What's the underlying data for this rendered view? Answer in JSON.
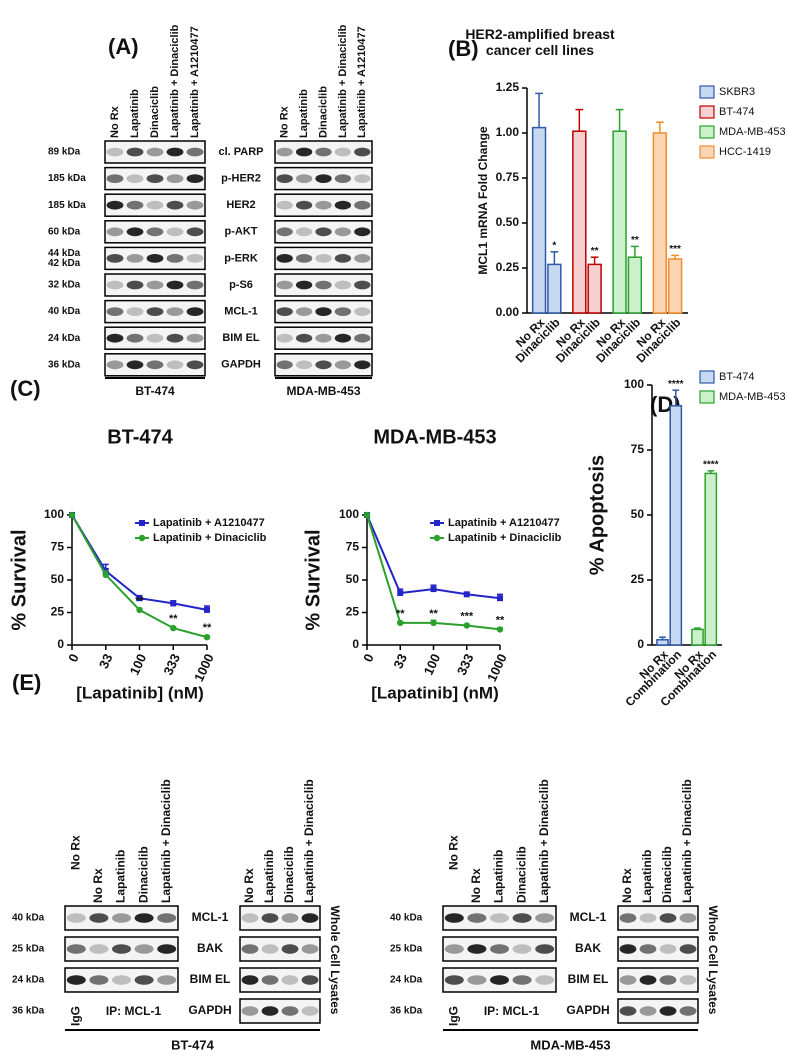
{
  "panel_labels": [
    "(A)",
    "(B)",
    "(C)",
    "(D)",
    "(E)"
  ],
  "blot_a": {
    "lanes": [
      "No Rx",
      "Lapatinib",
      "Dinaciclib",
      "Lapatinib + Dinaciclib",
      "Lapatinib + A1210477"
    ],
    "rows": [
      {
        "markers": [
          "89 kDa"
        ],
        "protein": "cl. PARP"
      },
      {
        "markers": [
          "185 kDa"
        ],
        "protein": "p-HER2"
      },
      {
        "markers": [
          "185 kDa"
        ],
        "protein": "HER2"
      },
      {
        "markers": [
          "60 kDa"
        ],
        "protein": "p-AKT"
      },
      {
        "markers": [
          "44 kDa",
          "42 kDa"
        ],
        "protein": "p-ERK"
      },
      {
        "markers": [
          "32 kDa"
        ],
        "protein": "p-S6"
      },
      {
        "markers": [
          "40 kDa"
        ],
        "protein": "MCL-1"
      },
      {
        "markers": [
          "24 kDa"
        ],
        "protein": "BIM EL"
      },
      {
        "markers": [
          "36 kDa"
        ],
        "protein": "GAPDH"
      }
    ],
    "cell_lines": [
      "BT-474",
      "MDA-MB-453"
    ]
  },
  "blot_e": {
    "ip_lanes": [
      "No Rx",
      "No Rx",
      "Lapatinib",
      "Dinaciclib",
      "Lapatinib + Dinaciclib"
    ],
    "wcl_lanes": [
      "No Rx",
      "Lapatinib",
      "Dinaciclib",
      "Lapatinib + Dinaciclib"
    ],
    "rows": [
      {
        "marker": "40 kDa",
        "protein": "MCL-1"
      },
      {
        "marker": "25 kDa",
        "protein": "BAK"
      },
      {
        "marker": "24 kDa",
        "protein": "BIM EL"
      },
      {
        "marker": "36 kDa",
        "protein": "GAPDH"
      }
    ],
    "igg": "IgG",
    "ip_label": "IP: MCL-1",
    "wcl_label": "Whole Cell Lysates",
    "cell_lines": [
      "BT-474",
      "MDA-MB-453"
    ]
  },
  "chart_data": [
    {
      "type": "bar",
      "title": "HER2-amplified breast cancer cell lines",
      "ylabel": "MCL1 mRNA Fold Change",
      "categories": [
        "No Rx",
        "Dinaciclib"
      ],
      "series": [
        {
          "name": "SKBR3",
          "color": "#c6d9f1",
          "edge_color": "#2e59a8",
          "values": [
            1.03,
            0.27
          ],
          "errors": [
            0.19,
            0.07
          ],
          "annotations": [
            null,
            "*"
          ]
        },
        {
          "name": "BT-474",
          "color": "#f6d0d0",
          "edge_color": "#c00000",
          "values": [
            1.01,
            0.27
          ],
          "errors": [
            0.12,
            0.04
          ],
          "annotations": [
            null,
            "**"
          ]
        },
        {
          "name": "MDA-MB-453",
          "color": "#ccf0cc",
          "edge_color": "#2ca02c",
          "values": [
            1.01,
            0.31
          ],
          "errors": [
            0.12,
            0.06
          ],
          "annotations": [
            null,
            "**"
          ]
        },
        {
          "name": "HCC-1419",
          "color": "#fcd5b4",
          "edge_color": "#f28c28",
          "values": [
            1.0,
            0.3
          ],
          "errors": [
            0.06,
            0.02
          ],
          "annotations": [
            null,
            "***"
          ]
        }
      ],
      "ylim": [
        0,
        1.25
      ],
      "yticks": [
        {
          "value": 0,
          "label": "0.00"
        },
        {
          "value": 0.25,
          "label": "0.25"
        },
        {
          "value": 0.5,
          "label": "0.50"
        },
        {
          "value": 0.75,
          "label": "0.75"
        },
        {
          "value": 1,
          "label": "1.00"
        },
        {
          "value": 1.25,
          "label": "1.25"
        }
      ],
      "legend": "upper right"
    },
    {
      "type": "line",
      "title": "BT-474",
      "xlabel": "[Lapatinib] (nM)",
      "ylabel": "% Survival",
      "categories": [
        "0",
        "33",
        "100",
        "333",
        "1000"
      ],
      "series": [
        {
          "name": "Lapatinib + A1210477",
          "color": "#2424c8",
          "marker": "square",
          "values": [
            100,
            57,
            36,
            32,
            27
          ],
          "errors": [
            0,
            5,
            2,
            2,
            3
          ]
        },
        {
          "name": "Lapatinib + Dinaciclib",
          "color": "#2ca02c",
          "marker": "circle",
          "values": [
            100,
            54,
            27,
            13,
            6
          ],
          "errors": [
            0,
            3,
            1,
            1,
            1
          ],
          "annotations": [
            null,
            null,
            "**",
            "**",
            "**"
          ]
        }
      ],
      "ylim": [
        0,
        100
      ],
      "yticks": [
        0,
        25,
        50,
        75,
        100
      ],
      "legend": "upper right"
    },
    {
      "type": "line",
      "title": "MDA-MB-453",
      "xlabel": "[Lapatinib] (nM)",
      "ylabel": "% Survival",
      "categories": [
        "0",
        "33",
        "100",
        "333",
        "1000"
      ],
      "series": [
        {
          "name": "Lapatinib + A1210477",
          "color": "#2424c8",
          "marker": "square",
          "values": [
            100,
            40,
            43,
            39,
            36
          ],
          "errors": [
            0,
            3,
            3,
            1,
            3
          ]
        },
        {
          "name": "Lapatinib + Dinaciclib",
          "color": "#2ca02c",
          "marker": "circle",
          "values": [
            100,
            17,
            17,
            15,
            12
          ],
          "errors": [
            0,
            1,
            2,
            1,
            1
          ],
          "annotations": [
            null,
            "**",
            "**",
            "***",
            "**"
          ]
        }
      ],
      "ylim": [
        0,
        100
      ],
      "yticks": [
        0,
        25,
        50,
        75,
        100
      ],
      "legend": "upper right"
    },
    {
      "type": "bar",
      "ylabel": "% Apoptosis",
      "categories": [
        "No Rx",
        "Combination"
      ],
      "series": [
        {
          "name": "BT-474",
          "color": "#c6d9f1",
          "edge_color": "#2e59a8",
          "values": [
            2,
            92
          ],
          "errors": [
            1,
            6
          ],
          "annotations": [
            null,
            "****"
          ]
        },
        {
          "name": "MDA-MB-453",
          "color": "#ccf0cc",
          "edge_color": "#2ca02c",
          "values": [
            6,
            66
          ],
          "errors": [
            0.5,
            1
          ],
          "annotations": [
            null,
            "****"
          ]
        }
      ],
      "ylim": [
        0,
        100
      ],
      "yticks": [
        0,
        25,
        50,
        75,
        100
      ],
      "legend": "upper right"
    }
  ]
}
